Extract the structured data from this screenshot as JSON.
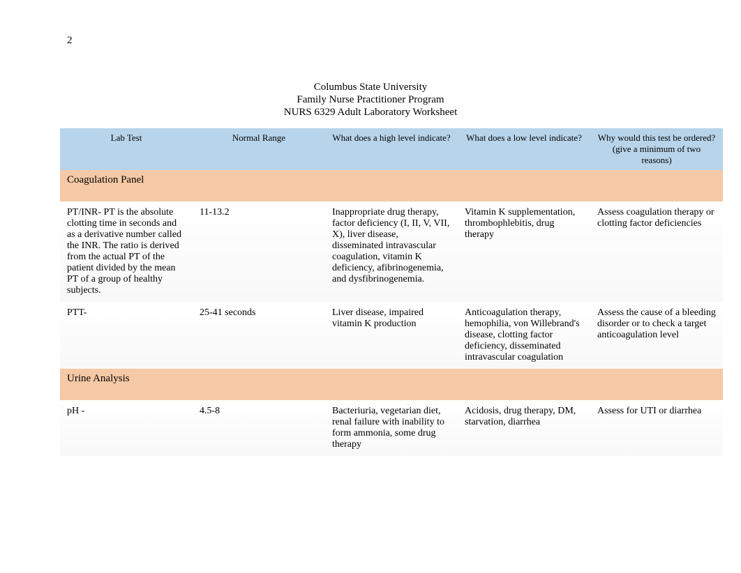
{
  "page_number": "2",
  "header": {
    "line1": "Columbus State University",
    "line2": "Family Nurse Practitioner Program",
    "line3": "NURS 6329 Adult Laboratory Worksheet"
  },
  "table": {
    "header_bg": "#b8d4ea",
    "section_bg": "#f5c9a5",
    "row_bg": "#ffffff",
    "text_color": "#000000",
    "font_family": "Times New Roman",
    "header_fontsize": 13,
    "body_fontsize": 14,
    "columns": [
      "Lab Test",
      "Normal Range",
      "What does a high level indicate?",
      "What does a low level indicate?",
      "Why would this test be ordered? (give a minimum of two reasons)"
    ],
    "sections": [
      {
        "title": "Coagulation Panel",
        "rows": [
          {
            "test": "PT/INR- PT is the absolute clotting time in seconds and as a derivative number called the INR. The ratio is derived from the actual PT of the patient divided by the mean PT of a group of healthy subjects.",
            "range": "11-13.2",
            "high": "Inappropriate drug therapy, factor deficiency (I, II, V, VII, X), liver disease, disseminated intravascular coagulation, vitamin K deficiency, afibrinogenemia, and dysfibrinogenemia.",
            "low": "Vitamin K supplementation, thrombophlebitis, drug therapy",
            "why": "Assess coagulation therapy or clotting factor deficiencies"
          },
          {
            "test": "PTT-",
            "range": "25-41 seconds",
            "high": "Liver disease, impaired vitamin K production",
            "low": "Anticoagulation therapy, hemophilia, von Willebrand's disease, clotting factor deficiency, disseminated intravascular coagulation",
            "why": "Assess the cause of a bleeding disorder or to check a target anticoagulation level"
          }
        ]
      },
      {
        "title": "Urine Analysis",
        "rows": [
          {
            "test": "pH -",
            "range": "4.5-8",
            "high": "Bacteriuria, vegetarian diet, renal failure with inability to form ammonia, some drug therapy",
            "low": "Acidosis, drug therapy, DM, starvation, diarrhea",
            "why": "Assess for UTI or diarrhea"
          }
        ]
      }
    ]
  }
}
